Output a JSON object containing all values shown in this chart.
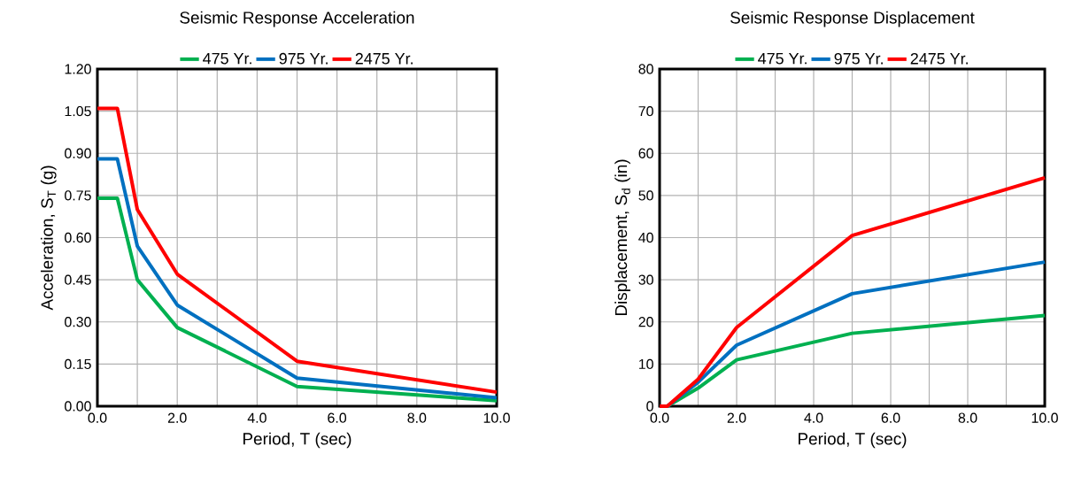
{
  "chart_data": [
    {
      "type": "line",
      "title": "Seismic Response Acceleration",
      "xlabel": "Period, T (sec)",
      "ylabel": "Acceleration, S$_{T}$ (g)",
      "x": [
        0,
        0.5,
        1,
        2,
        5,
        10
      ],
      "series": [
        {
          "name": "475 Yr.",
          "color": "#00b050",
          "values": [
            0.74,
            0.74,
            0.45,
            0.28,
            0.07,
            0.02
          ]
        },
        {
          "name": "975 Yr.",
          "color": "#0070c0",
          "values": [
            0.88,
            0.88,
            0.57,
            0.36,
            0.1,
            0.03
          ]
        },
        {
          "name": "2475 Yr.",
          "color": "#ff0000",
          "values": [
            1.06,
            1.06,
            0.7,
            0.47,
            0.16,
            0.05
          ]
        }
      ],
      "xlim": [
        0,
        10
      ],
      "ylim": [
        0,
        1.2
      ],
      "xticks": [
        {
          "value": 0,
          "label": "0.0"
        },
        {
          "value": 1,
          "label": null
        },
        {
          "value": 2,
          "label": "2.0"
        },
        {
          "value": 3,
          "label": null
        },
        {
          "value": 4,
          "label": "4.0"
        },
        {
          "value": 5,
          "label": null
        },
        {
          "value": 6,
          "label": "6.0"
        },
        {
          "value": 7,
          "label": null
        },
        {
          "value": 8,
          "label": "8.0"
        },
        {
          "value": 9,
          "label": null
        },
        {
          "value": 10,
          "label": "10.0"
        }
      ],
      "yticks": [
        {
          "value": 0,
          "label": "0.00"
        },
        {
          "value": 0.15,
          "label": "0.15"
        },
        {
          "value": 0.3,
          "label": "0.30"
        },
        {
          "value": 0.45,
          "label": "0.45"
        },
        {
          "value": 0.6,
          "label": "0.60"
        },
        {
          "value": 0.75,
          "label": "0.75"
        },
        {
          "value": 0.9,
          "label": "0.90"
        },
        {
          "value": 1.05,
          "label": "1.05"
        },
        {
          "value": 1.2,
          "label": "1.20"
        }
      ],
      "grid": true,
      "legend": "top",
      "marker": "none",
      "line_style": "solid"
    },
    {
      "type": "line",
      "title": "Seismic Response Displacement",
      "xlabel": "Period, T (sec)",
      "ylabel": "Displacement, S$_{d}$ (in)",
      "x": [
        0,
        0.2,
        1,
        2,
        5,
        10
      ],
      "series": [
        {
          "name": "475 Yr.",
          "color": "#00b050",
          "values": [
            0,
            0,
            4.3,
            11,
            17.3,
            21.5
          ]
        },
        {
          "name": "975 Yr.",
          "color": "#0070c0",
          "values": [
            0,
            0,
            5.7,
            14.5,
            26.7,
            34.2
          ]
        },
        {
          "name": "2475 Yr.",
          "color": "#ff0000",
          "values": [
            0,
            0,
            6.4,
            18.7,
            40.5,
            54.2
          ]
        }
      ],
      "xlim": [
        0,
        10
      ],
      "ylim": [
        0,
        80
      ],
      "xticks": [
        {
          "value": 0,
          "label": "0.0"
        },
        {
          "value": 1,
          "label": null
        },
        {
          "value": 2,
          "label": "2.0"
        },
        {
          "value": 3,
          "label": null
        },
        {
          "value": 4,
          "label": "4.0"
        },
        {
          "value": 5,
          "label": null
        },
        {
          "value": 6,
          "label": "6.0"
        },
        {
          "value": 7,
          "label": null
        },
        {
          "value": 8,
          "label": "8.0"
        },
        {
          "value": 9,
          "label": null
        },
        {
          "value": 10,
          "label": "10.0"
        }
      ],
      "yticks": [
        0,
        10,
        20,
        30,
        40,
        50,
        60,
        70,
        80
      ],
      "grid": true,
      "legend": "top",
      "marker": "none",
      "line_style": "solid"
    }
  ]
}
